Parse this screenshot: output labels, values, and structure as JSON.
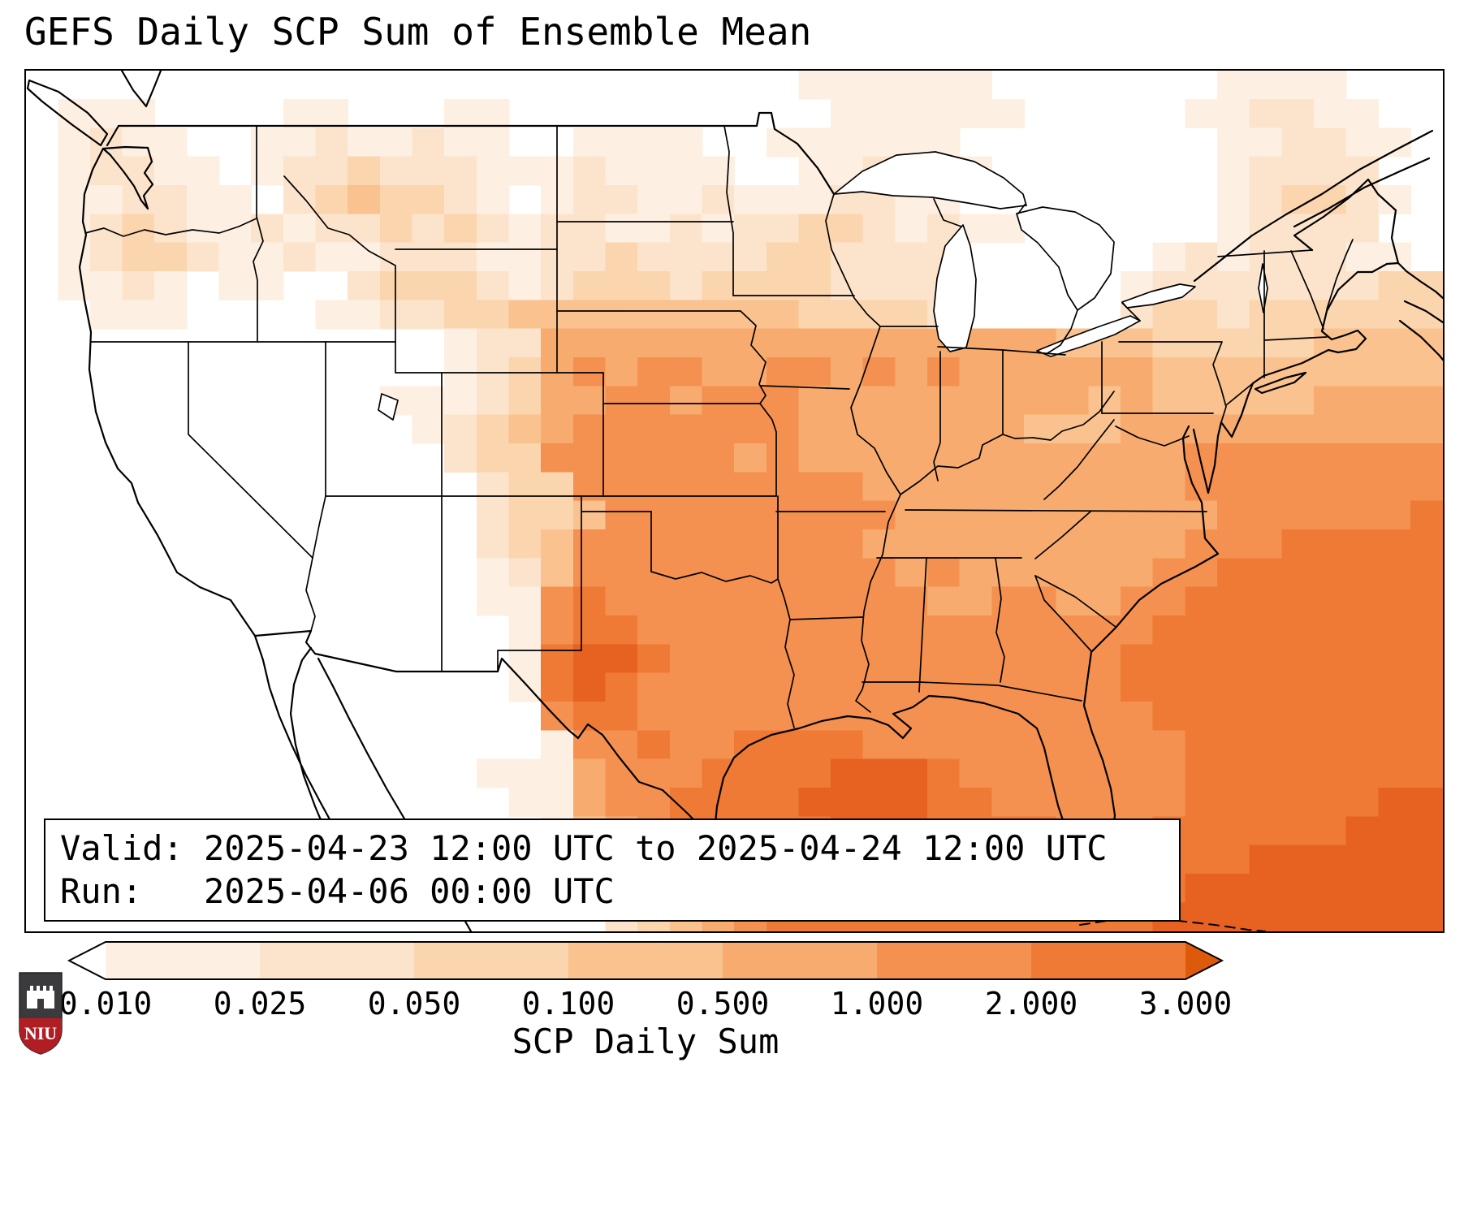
{
  "title": "GEFS Daily SCP Sum of Ensemble Mean",
  "info_box": {
    "valid_line": "Valid: 2025-04-23 12:00 UTC to 2025-04-24 12:00 UTC",
    "run_line": "Run:   2025-04-06 00:00 UTC"
  },
  "colorbar": {
    "label": "SCP Daily Sum",
    "tick_labels": [
      "0.010",
      "0.025",
      "0.050",
      "0.100",
      "0.500",
      "1.000",
      "2.000",
      "3.000"
    ],
    "segment_colors": [
      "#fdf0e2",
      "#fce4cc",
      "#fbd5ae",
      "#f9c28e",
      "#f7ab6e",
      "#f49150",
      "#ef7a36"
    ],
    "under_color": "#ffffff",
    "over_color": "#dd5a0b"
  },
  "logo": {
    "text": "NIU",
    "red": "#b01e24",
    "gray": "#3b3b3d"
  },
  "chart_data": {
    "type": "heatmap",
    "title": "GEFS Daily SCP Sum of Ensemble Mean",
    "variable_label": "SCP Daily Sum",
    "region": "Contiguous United States",
    "valid_period": "2025-04-23 12:00 UTC to 2025-04-24 12:00 UTC",
    "run_time": "2025-04-06 00:00 UTC",
    "colorbar_levels": [
      0.01,
      0.025,
      0.05,
      0.1,
      0.5,
      1.0,
      2.0,
      3.0
    ],
    "palette": [
      "#ffffff",
      "#fdf0e2",
      "#fce4cc",
      "#fbd5ae",
      "#f9c28e",
      "#f7ab6e",
      "#f49150",
      "#ef7a36",
      "#e76120"
    ],
    "under_color": "#ffffff",
    "over_color": "#dd5a0b",
    "grid_shape": [
      30,
      44
    ],
    "grid_rows": [
      "00000000000000000000000011111100000001111000",
      "01110000110001100000000001111110000011221100",
      "01211001121121100111100111111000000001122110",
      "01221101223222111211110011221100000001222200",
      "01122110234332101221121112211000000001233210",
      "01232112122323212211212233212110000001222200",
      "01233211211222112232222332222000000121222110",
      "01121011002333212333233332222000001222222233",
      "00111000011223344444444433332000002332333333",
      "00000000000001225555555555555555444333334444",
      "00000000000001235656655665656555555444444444",
      "00000000000111235566566655555555545444445555",
      "00000000000012345666666655555554445555555555",
      "00000000000002336666665655555555555566666666",
      "00000000000000233666666666555555555566666666",
      "00000000000000233466666666655555555556666667",
      "00000000000000234666666666555555555566677777",
      "00000000000000124666666666656555555667777777",
      "00000000000000116766666666665566556677777777",
      "00000000000000016776666666666666666777777777",
      "00000000000000017887666666666666667777777777",
      "00000000000000017876666666666666667777777777",
      "00000000000000006776666666666666666777777777",
      "00000000000000001667667777666666666677777777",
      "00000000000000111566677778887666666677777777",
      "00000000000000011566777788887766666677777788",
      "00000000000000001456777778887777666777777888",
      "00000000000000000345677777777777777777888888",
      "00000000000000000034567777777777777788888888",
      "00000000000000000023456777777777777888888888"
    ]
  }
}
